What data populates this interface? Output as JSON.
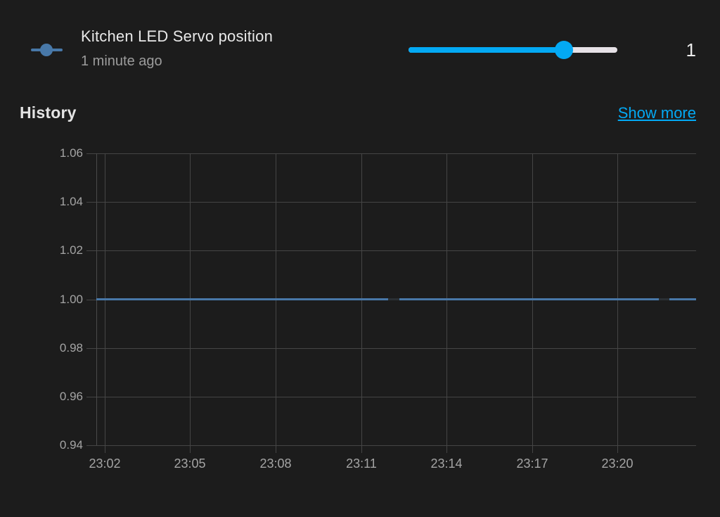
{
  "accent": "#03a9f4",
  "background": "#1c1c1c",
  "header": {
    "icon": "ray-vertex-icon",
    "icon_color": "#4878a8",
    "title": "Kitchen LED Servo position",
    "subtitle": "1 minute ago",
    "state_value": "1",
    "slider": {
      "value": 1,
      "fill_percent": 74.4
    }
  },
  "history": {
    "title": "History",
    "show_more_label": "Show more"
  },
  "chart_data": {
    "type": "line",
    "title": "Kitchen LED Servo position history",
    "ylabel": "",
    "xlabel": "",
    "ylim": [
      0.94,
      1.06
    ],
    "grid": true,
    "legend": false,
    "y_ticks": [
      "1.06",
      "1.04",
      "1.02",
      "1.00",
      "0.98",
      "0.96",
      "0.94"
    ],
    "x_ticks": [
      {
        "label": "23:02",
        "f": 0.0141
      },
      {
        "label": "23:05",
        "f": 0.1565
      },
      {
        "label": "23:08",
        "f": 0.299
      },
      {
        "label": "23:11",
        "f": 0.4414
      },
      {
        "label": "23:14",
        "f": 0.5838
      },
      {
        "label": "23:17",
        "f": 0.7263
      },
      {
        "label": "23:20",
        "f": 0.8687
      }
    ],
    "series": [
      {
        "name": "Kitchen LED Servo position",
        "value": 1.0,
        "color": "#4878a8",
        "segments": [
          {
            "start_f": 0.0,
            "end_f": 0.4865,
            "value": 1.0
          },
          {
            "start_f": 0.5053,
            "end_f": 0.9379,
            "value": 1.0
          },
          {
            "start_f": 0.9555,
            "end_f": 1.0,
            "value": 1.0
          }
        ],
        "gaps": [
          {
            "start_f": 0.4865,
            "end_f": 0.5053
          },
          {
            "start_f": 0.9379,
            "end_f": 0.9555
          }
        ]
      }
    ],
    "gap_color": "#2b2f34"
  }
}
